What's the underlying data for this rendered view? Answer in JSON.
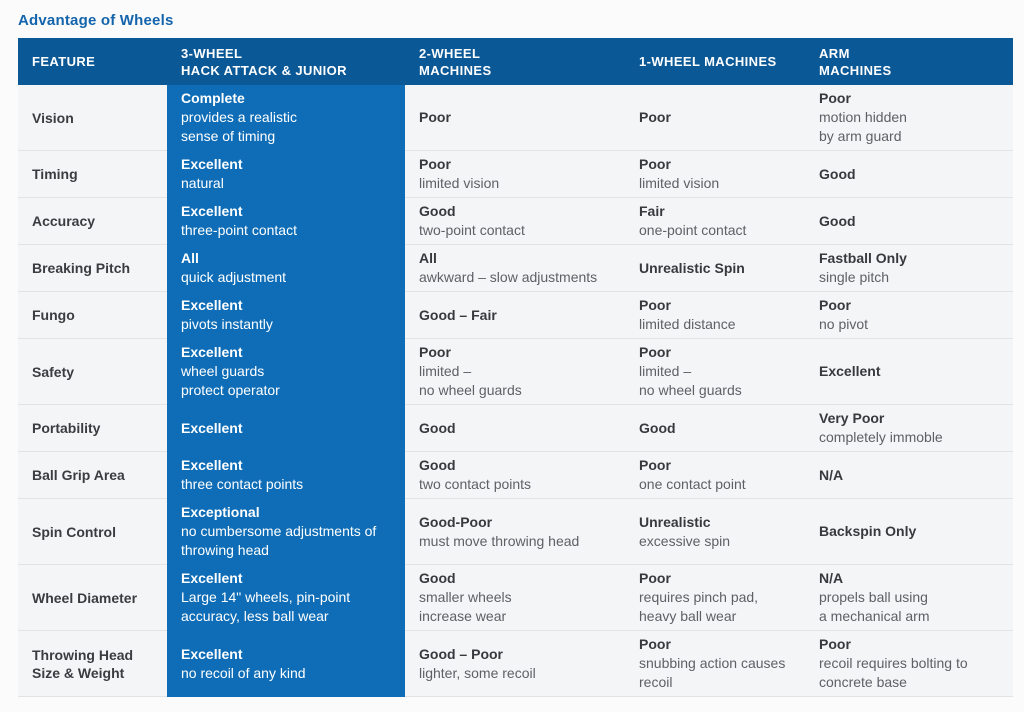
{
  "title": "Advantage of Wheels",
  "colors": {
    "header_bg": "#0a5896",
    "highlight_column_bg": "#0e6db6",
    "title_text": "#1464ab",
    "row_bg": "#f4f5f6",
    "divider": "#e1e3e5"
  },
  "table": {
    "columns": [
      {
        "label": "FEATURE"
      },
      {
        "label": "3-WHEEL\nHACK ATTACK & JUNIOR",
        "highlight": true
      },
      {
        "label": "2-WHEEL\nMACHINES"
      },
      {
        "label": "1-WHEEL MACHINES"
      },
      {
        "label": "ARM\nMACHINES"
      }
    ],
    "rows": [
      {
        "feature": "Vision",
        "cells": [
          {
            "strong": "Complete",
            "text": "provides a realistic\nsense of timing"
          },
          {
            "strong": "Poor",
            "text": ""
          },
          {
            "strong": "Poor",
            "text": ""
          },
          {
            "strong": "Poor",
            "text": "motion hidden\nby arm guard"
          }
        ]
      },
      {
        "feature": "Timing",
        "cells": [
          {
            "strong": "Excellent",
            "text": "natural"
          },
          {
            "strong": "Poor",
            "text": "limited vision"
          },
          {
            "strong": "Poor",
            "text": "limited vision"
          },
          {
            "strong": "Good",
            "text": ""
          }
        ]
      },
      {
        "feature": "Accuracy",
        "cells": [
          {
            "strong": "Excellent",
            "text": "three-point contact"
          },
          {
            "strong": "Good",
            "text": "two-point contact"
          },
          {
            "strong": "Fair",
            "text": "one-point contact"
          },
          {
            "strong": "Good",
            "text": ""
          }
        ]
      },
      {
        "feature": "Breaking Pitch",
        "cells": [
          {
            "strong": "All",
            "text": "quick adjustment"
          },
          {
            "strong": "All",
            "text": "awkward – slow adjustments"
          },
          {
            "strong": "Unrealistic Spin",
            "text": ""
          },
          {
            "strong": "Fastball Only",
            "text": "single pitch"
          }
        ]
      },
      {
        "feature": "Fungo",
        "cells": [
          {
            "strong": "Excellent",
            "text": "pivots instantly"
          },
          {
            "strong": "Good – Fair",
            "text": ""
          },
          {
            "strong": "Poor",
            "text": "limited distance"
          },
          {
            "strong": "Poor",
            "text": "no pivot"
          }
        ]
      },
      {
        "feature": "Safety",
        "cells": [
          {
            "strong": "Excellent",
            "text": "wheel guards\nprotect operator"
          },
          {
            "strong": "Poor",
            "text": "limited –\nno wheel guards"
          },
          {
            "strong": "Poor",
            "text": "limited –\nno wheel guards"
          },
          {
            "strong": "Excellent",
            "text": ""
          }
        ]
      },
      {
        "feature": "Portability",
        "cells": [
          {
            "strong": "Excellent",
            "text": ""
          },
          {
            "strong": "Good",
            "text": ""
          },
          {
            "strong": "Good",
            "text": ""
          },
          {
            "strong": "Very Poor",
            "text": "completely immoble"
          }
        ]
      },
      {
        "feature": "Ball Grip Area",
        "cells": [
          {
            "strong": "Excellent",
            "text": "three contact points"
          },
          {
            "strong": "Good",
            "text": "two contact points"
          },
          {
            "strong": "Poor",
            "text": "one contact point"
          },
          {
            "strong": "N/A",
            "text": ""
          }
        ]
      },
      {
        "feature": "Spin Control",
        "cells": [
          {
            "strong": "Exceptional",
            "text": "no cumbersome adjustments of\nthrowing head"
          },
          {
            "strong": "Good-Poor",
            "text": "must move throwing head"
          },
          {
            "strong": "Unrealistic",
            "text": "excessive spin"
          },
          {
            "strong": "Backspin Only",
            "text": ""
          }
        ]
      },
      {
        "feature": "Wheel Diameter",
        "cells": [
          {
            "strong": "Excellent",
            "text": "Large 14\" wheels, pin-point\naccuracy, less ball wear"
          },
          {
            "strong": "Good",
            "text": "smaller wheels\nincrease wear"
          },
          {
            "strong": "Poor",
            "text": "requires pinch pad,\nheavy ball wear"
          },
          {
            "strong": "N/A",
            "text": "propels ball using\na mechanical arm"
          }
        ]
      },
      {
        "feature": "Throwing Head\nSize & Weight",
        "cells": [
          {
            "strong": "Excellent",
            "text": "no recoil of any kind"
          },
          {
            "strong": "Good – Poor",
            "text": "lighter, some recoil"
          },
          {
            "strong": "Poor",
            "text": "snubbing action causes\nrecoil"
          },
          {
            "strong": "Poor",
            "text": "recoil requires bolting to\nconcrete base"
          }
        ]
      }
    ]
  }
}
